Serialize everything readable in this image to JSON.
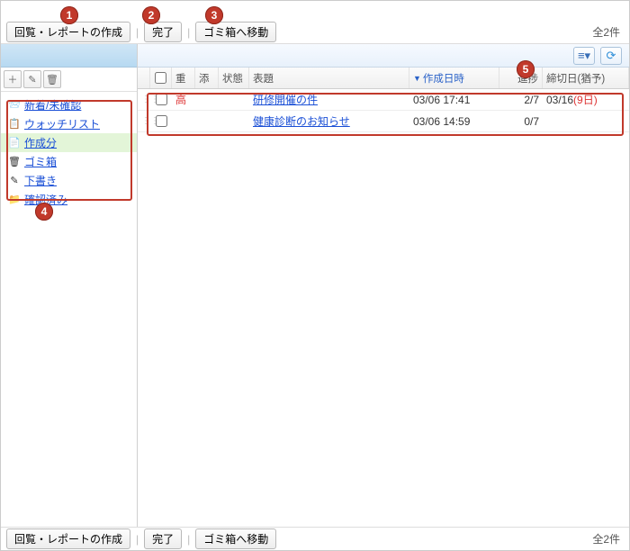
{
  "colors": {
    "accent": "#1a4fd6",
    "callout_bg": "#c1392b",
    "callout_ring": "#8e271c",
    "outline": "#c1392b",
    "header_grad_top": "#cfe6f6",
    "header_grad_bot": "#b7d9f1",
    "sev_high": "#d33",
    "due_warn": "#d33",
    "active_folder_bg": "#e3f5d8"
  },
  "toolbar": {
    "create_label": "回覧・レポートの作成",
    "done_label": "完了",
    "trash_label": "ゴミ箱へ移動",
    "count_label": "全2件"
  },
  "left": {
    "btn_add_title": "追加",
    "btn_edit_title": "編集",
    "btn_del_title": "削除",
    "folders": [
      {
        "icon": "📨",
        "label": "新着/未確認"
      },
      {
        "icon": "📋",
        "label": "ウォッチリスト"
      },
      {
        "icon": "📄",
        "label": "作成分",
        "active": true
      },
      {
        "icon": "🗑",
        "label": "ゴミ箱"
      },
      {
        "icon": "✎",
        "label": "下書き"
      },
      {
        "icon": "📁",
        "label": "確認済み"
      }
    ]
  },
  "main": {
    "view_menu_title": "表示",
    "refresh_title": "更新",
    "columns": {
      "chk": "",
      "sev": "重",
      "att": "添",
      "state": "状態",
      "subject": "表題",
      "created": "作成日時",
      "progress": "進捗",
      "due": "締切日(猶予)"
    },
    "sort_column": "created",
    "rows": [
      {
        "sev": "高",
        "sev_high": true,
        "subject": "研修開催の件",
        "created": "03/06 17:41",
        "progress": "2/7",
        "due": "03/16 ",
        "due_extra": "(9日)",
        "due_warn": true
      },
      {
        "sev": "",
        "sev_high": false,
        "subject": "健康診断のお知らせ",
        "created": "03/06 14:59",
        "progress": "0/7",
        "due": "",
        "due_extra": "",
        "due_warn": false
      }
    ]
  },
  "callouts": {
    "c1": "1",
    "c2": "2",
    "c3": "3",
    "c4": "4",
    "c5": "5"
  }
}
